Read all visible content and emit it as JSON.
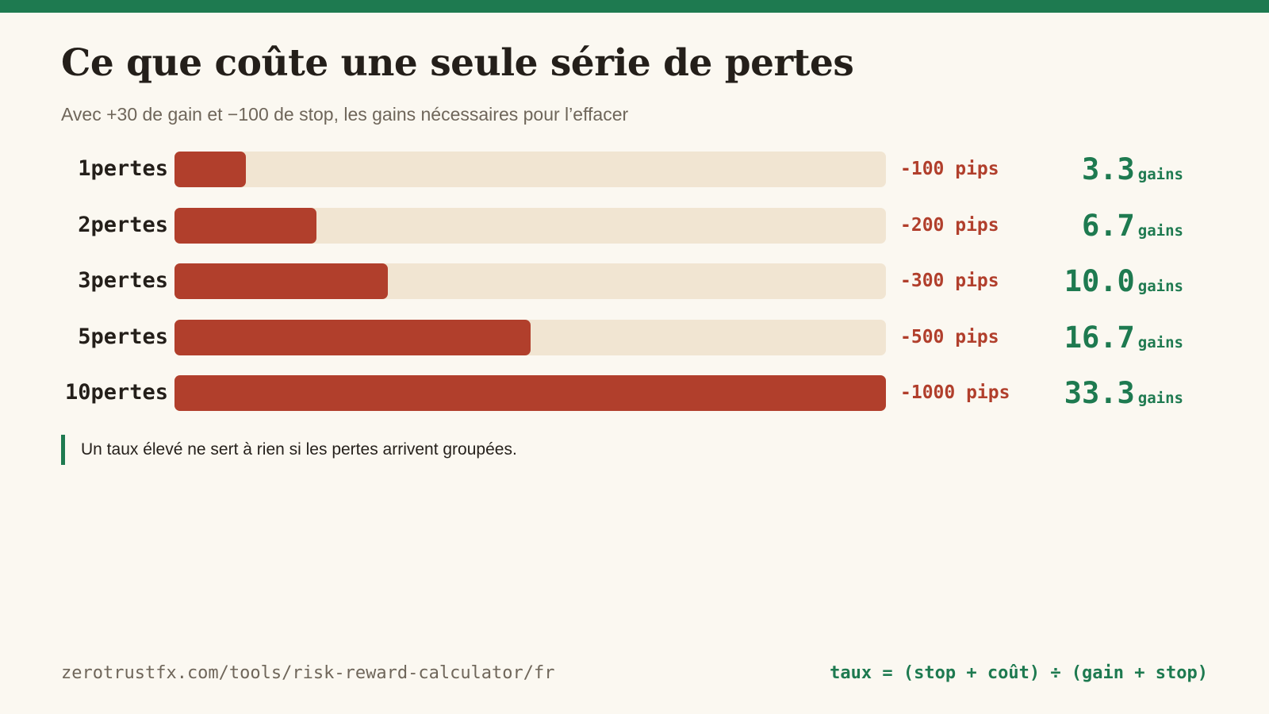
{
  "header": {
    "title": "Ce que coûte une seule série de pertes",
    "subtitle": "Avec +30 de gain et −100 de stop, les gains nécessaires pour l’effacer"
  },
  "chart_data": {
    "type": "bar",
    "orientation": "horizontal",
    "categories": [
      "1pertes",
      "2pertes",
      "3pertes",
      "5pertes",
      "10pertes"
    ],
    "values": [
      100,
      200,
      300,
      500,
      1000
    ],
    "value_labels": [
      "-100 pips",
      "-200 pips",
      "-300 pips",
      "-500 pips",
      "-1000 pips"
    ],
    "results": [
      "3.3",
      "6.7",
      "10.0",
      "16.7",
      "33.3"
    ],
    "result_unit": "gains",
    "xlim": [
      0,
      1000
    ],
    "grid": false,
    "legend": "none"
  },
  "note": "Un taux élevé ne sert à rien si les pertes arrivent groupées.",
  "footer": {
    "url": "zerotrustfx.com/tools/risk-reward-calculator/fr",
    "formula": "taux = (stop + coût) ÷ (gain + stop)"
  },
  "colors": {
    "accent": "#1e7a50",
    "loss": "#b13f2c",
    "track": "#f1e5d2",
    "background": "#fbf8f1",
    "text": "#241f1a"
  }
}
